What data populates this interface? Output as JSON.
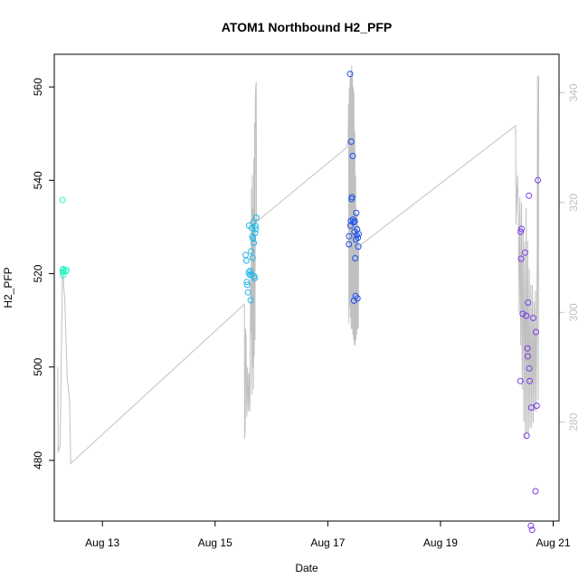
{
  "chart_data": {
    "type": "scatter",
    "title": "ATOM1 Northbound H2_PFP",
    "xlabel": "Date",
    "ylabel": "H2_PFP",
    "x_ticks": [
      "Aug 13",
      "Aug 15",
      "Aug 17",
      "Aug 19",
      "Aug 21"
    ],
    "y_ticks": [
      480,
      500,
      520,
      540,
      560
    ],
    "y_right_ticks": [
      280,
      300,
      320,
      340
    ],
    "xlim": [
      "2013-08-12T03:30",
      "2013-08-21T02:30"
    ],
    "ylim": [
      467,
      567
    ],
    "y_right_lim": [
      262,
      347
    ],
    "colors": {
      "line": "#c0c0c0",
      "axis": "#000000",
      "right_axis": "#c0c0c0"
    },
    "series": [
      {
        "color": "#2ef5c8",
        "points": [
          [
            "2013-08-12T07:00",
            535.8
          ],
          [
            "2013-08-12T07:05",
            520.8
          ],
          [
            "2013-08-12T07:10",
            520.3
          ],
          [
            "2013-08-12T07:15",
            519.7
          ],
          [
            "2013-08-12T07:20",
            521.0
          ],
          [
            "2013-08-12T07:30",
            520.5
          ],
          [
            "2013-08-12T08:30",
            520.5
          ],
          [
            "2013-08-12T08:40",
            520.8
          ]
        ]
      },
      {
        "color": "#1fb8e8",
        "points": [
          [
            "2013-08-15T13:00",
            524.0
          ],
          [
            "2013-08-15T13:20",
            522.8
          ],
          [
            "2013-08-15T13:30",
            518.2
          ],
          [
            "2013-08-15T13:40",
            517.6
          ],
          [
            "2013-08-15T14:00",
            516.0
          ],
          [
            "2013-08-15T14:20",
            520.3
          ],
          [
            "2013-08-15T14:30",
            530.3
          ],
          [
            "2013-08-15T14:45",
            519.8
          ],
          [
            "2013-08-15T15:00",
            520.6
          ],
          [
            "2013-08-15T15:10",
            514.3
          ],
          [
            "2013-08-15T15:20",
            524.8
          ],
          [
            "2013-08-15T15:30",
            519.8
          ],
          [
            "2013-08-15T15:40",
            529.8
          ],
          [
            "2013-08-15T15:50",
            528.0
          ],
          [
            "2013-08-15T16:00",
            523.4
          ],
          [
            "2013-08-15T16:10",
            527.5
          ],
          [
            "2013-08-15T16:15",
            531.0
          ],
          [
            "2013-08-15T16:30",
            526.6
          ],
          [
            "2013-08-15T16:40",
            519.4
          ],
          [
            "2013-08-15T16:50",
            519.0
          ],
          [
            "2013-08-15T17:00",
            528.7
          ],
          [
            "2013-08-15T17:10",
            530.2
          ],
          [
            "2013-08-15T17:20",
            529.6
          ],
          [
            "2013-08-15T17:30",
            532.0
          ]
        ]
      },
      {
        "color": "#1a4ff0",
        "points": [
          [
            "2013-08-17T09:00",
            526.3
          ],
          [
            "2013-08-17T09:05",
            528.0
          ],
          [
            "2013-08-17T09:30",
            562.8
          ],
          [
            "2013-08-17T09:40",
            530.3
          ],
          [
            "2013-08-17T09:50",
            531.3
          ],
          [
            "2013-08-17T10:00",
            548.3
          ],
          [
            "2013-08-17T10:10",
            536.0
          ],
          [
            "2013-08-17T10:20",
            536.4
          ],
          [
            "2013-08-17T10:40",
            545.2
          ],
          [
            "2013-08-17T10:45",
            531.6
          ],
          [
            "2013-08-17T11:00",
            531.0
          ],
          [
            "2013-08-17T11:10",
            514.2
          ],
          [
            "2013-08-17T11:20",
            529.0
          ],
          [
            "2013-08-17T11:30",
            531.2
          ],
          [
            "2013-08-17T11:40",
            523.3
          ],
          [
            "2013-08-17T11:50",
            515.2
          ],
          [
            "2013-08-17T12:00",
            527.3
          ],
          [
            "2013-08-17T12:10",
            533.0
          ],
          [
            "2013-08-17T12:20",
            528.2
          ],
          [
            "2013-08-17T12:30",
            529.5
          ],
          [
            "2013-08-17T12:40",
            514.7
          ],
          [
            "2013-08-17T12:50",
            527.7
          ],
          [
            "2013-08-17T13:00",
            525.8
          ],
          [
            "2013-08-17T13:10",
            528.5
          ]
        ]
      },
      {
        "color": "#7a3be8",
        "points": [
          [
            "2013-08-20T10:00",
            497.0
          ],
          [
            "2013-08-20T10:10",
            529.0
          ],
          [
            "2013-08-20T10:20",
            523.2
          ],
          [
            "2013-08-20T10:30",
            529.6
          ],
          [
            "2013-08-20T11:00",
            511.4
          ],
          [
            "2013-08-20T12:00",
            524.5
          ],
          [
            "2013-08-20T12:30",
            511.0
          ],
          [
            "2013-08-20T12:40",
            485.3
          ],
          [
            "2013-08-20T13:00",
            504.0
          ],
          [
            "2013-08-20T13:10",
            502.3
          ],
          [
            "2013-08-20T13:20",
            513.8
          ],
          [
            "2013-08-20T13:40",
            536.7
          ],
          [
            "2013-08-20T13:50",
            499.7
          ],
          [
            "2013-08-20T14:00",
            497.0
          ],
          [
            "2013-08-20T14:30",
            466.0
          ],
          [
            "2013-08-20T14:40",
            491.3
          ],
          [
            "2013-08-20T15:00",
            465.1
          ],
          [
            "2013-08-20T15:30",
            510.5
          ],
          [
            "2013-08-20T16:30",
            473.4
          ],
          [
            "2013-08-20T16:40",
            507.5
          ],
          [
            "2013-08-20T17:00",
            491.7
          ],
          [
            "2013-08-20T17:30",
            540.0
          ]
        ]
      }
    ],
    "line_series": {
      "axis": "right",
      "color": "#c0c0c0",
      "points": [
        [
          "2013-08-12T05:00",
          290.0
        ],
        [
          "2013-08-12T05:10",
          274.5
        ],
        [
          "2013-08-12T06:00",
          276.0
        ],
        [
          "2013-08-12T06:30",
          292.0
        ],
        [
          "2013-08-12T07:00",
          308.0
        ],
        [
          "2013-08-12T08:00",
          302.0
        ],
        [
          "2013-08-12T09:00",
          288.0
        ],
        [
          "2013-08-12T10:00",
          284.0
        ],
        [
          "2013-08-12T10:30",
          272.5
        ],
        [
          "2013-08-15T12:30",
          301.5
        ],
        [
          "2013-08-15T12:35",
          277.0
        ],
        [
          "2013-08-15T12:50",
          279.0
        ],
        [
          "2013-08-15T13:00",
          297.0
        ],
        [
          "2013-08-15T13:10",
          295.0
        ],
        [
          "2013-08-15T13:30",
          281.0
        ],
        [
          "2013-08-15T13:50",
          290.0
        ],
        [
          "2013-08-15T14:10",
          282.0
        ],
        [
          "2013-08-15T14:30",
          289.0
        ],
        [
          "2013-08-15T14:50",
          282.0
        ],
        [
          "2013-08-15T15:10",
          308.0
        ],
        [
          "2013-08-15T15:20",
          296.0
        ],
        [
          "2013-08-15T15:30",
          322.5
        ],
        [
          "2013-08-15T15:40",
          285.0
        ],
        [
          "2013-08-15T15:50",
          325.0
        ],
        [
          "2013-08-15T16:00",
          290.0
        ],
        [
          "2013-08-15T16:10",
          319.0
        ],
        [
          "2013-08-15T16:20",
          286.0
        ],
        [
          "2013-08-15T16:30",
          328.0
        ],
        [
          "2013-08-15T16:40",
          292.0
        ],
        [
          "2013-08-15T16:50",
          334.5
        ],
        [
          "2013-08-15T17:00",
          295.0
        ],
        [
          "2013-08-15T17:10",
          339.0
        ],
        [
          "2013-08-15T17:20",
          341.0
        ],
        [
          "2013-08-15T17:30",
          342.0
        ],
        [
          "2013-08-15T17:40",
          316.5
        ],
        [
          "2013-08-17T08:00",
          330.0
        ],
        [
          "2013-08-17T08:40",
          331.5
        ],
        [
          "2013-08-17T08:50",
          338.0
        ],
        [
          "2013-08-17T09:00",
          298.0
        ],
        [
          "2013-08-17T09:10",
          341.0
        ],
        [
          "2013-08-17T09:20",
          301.0
        ],
        [
          "2013-08-17T09:30",
          343.0
        ],
        [
          "2013-08-17T09:40",
          299.0
        ],
        [
          "2013-08-17T09:50",
          344.0
        ],
        [
          "2013-08-17T10:00",
          297.0
        ],
        [
          "2013-08-17T10:10",
          345.0
        ],
        [
          "2013-08-17T10:20",
          297.0
        ],
        [
          "2013-08-17T10:30",
          343.0
        ],
        [
          "2013-08-17T10:40",
          296.0
        ],
        [
          "2013-08-17T10:50",
          341.0
        ],
        [
          "2013-08-17T11:00",
          295.0
        ],
        [
          "2013-08-17T11:10",
          340.0
        ],
        [
          "2013-08-17T11:20",
          294.0
        ],
        [
          "2013-08-17T11:30",
          333.0
        ],
        [
          "2013-08-17T11:40",
          294.0
        ],
        [
          "2013-08-17T11:50",
          325.0
        ],
        [
          "2013-08-17T12:00",
          295.0
        ],
        [
          "2013-08-17T12:10",
          318.0
        ],
        [
          "2013-08-17T12:20",
          296.0
        ],
        [
          "2013-08-17T12:30",
          318.0
        ],
        [
          "2013-08-17T12:40",
          297.0
        ],
        [
          "2013-08-17T12:50",
          316.0
        ],
        [
          "2013-08-17T13:00",
          297.0
        ],
        [
          "2013-08-17T13:10",
          312.0
        ],
        [
          "2013-08-20T08:00",
          334.0
        ],
        [
          "2013-08-20T08:10",
          316.0
        ],
        [
          "2013-08-20T08:30",
          321.0
        ],
        [
          "2013-08-20T08:50",
          325.0
        ],
        [
          "2013-08-20T09:10",
          318.0
        ],
        [
          "2013-08-20T09:30",
          300.0
        ],
        [
          "2013-08-20T09:50",
          321.0
        ],
        [
          "2013-08-20T10:10",
          294.0
        ],
        [
          "2013-08-20T10:30",
          320.0
        ],
        [
          "2013-08-20T10:50",
          286.0
        ],
        [
          "2013-08-20T11:10",
          315.0
        ],
        [
          "2013-08-20T11:30",
          280.0
        ],
        [
          "2013-08-20T11:50",
          313.0
        ],
        [
          "2013-08-20T12:10",
          277.0
        ],
        [
          "2013-08-20T12:30",
          319.0
        ],
        [
          "2013-08-20T12:50",
          278.0
        ],
        [
          "2013-08-20T13:10",
          313.0
        ],
        [
          "2013-08-20T13:30",
          278.0
        ],
        [
          "2013-08-20T13:50",
          308.0
        ],
        [
          "2013-08-20T14:10",
          279.0
        ],
        [
          "2013-08-20T14:30",
          305.0
        ],
        [
          "2013-08-20T14:50",
          279.0
        ],
        [
          "2013-08-20T15:10",
          305.0
        ],
        [
          "2013-08-20T15:30",
          280.0
        ],
        [
          "2013-08-20T15:50",
          302.0
        ],
        [
          "2013-08-20T16:10",
          282.0
        ],
        [
          "2013-08-20T16:30",
          304.0
        ],
        [
          "2013-08-20T16:50",
          282.0
        ],
        [
          "2013-08-20T17:10",
          308.0
        ],
        [
          "2013-08-20T17:20",
          343.0
        ],
        [
          "2013-08-20T17:40",
          284.0
        ],
        [
          "2013-08-20T17:50",
          343.0
        ]
      ]
    }
  }
}
